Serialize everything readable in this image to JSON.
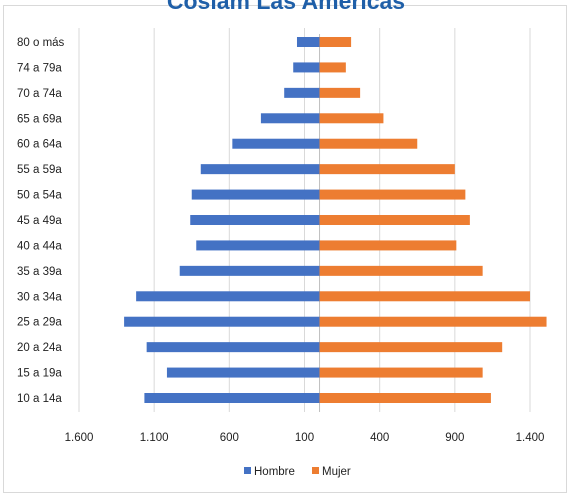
{
  "chart_data": {
    "type": "bar",
    "title": "Coslam Las Américas",
    "categories": [
      "10 a 14a",
      "15 a 19a",
      "20 a 24a",
      "25 a 29a",
      "30 a 34a",
      "35 a 39a",
      "40 a 44a",
      "45 a 49a",
      "50 a 54a",
      "55 a 59a",
      "60 a 64a",
      "65 a 69a",
      "70 a 74a",
      "74 a 79a",
      "80 o más"
    ],
    "series": [
      {
        "name": "Hombre",
        "color": "#4472c4",
        "values": [
          1165,
          1015,
          1150,
          1300,
          1220,
          930,
          820,
          860,
          850,
          790,
          580,
          390,
          235,
          175,
          150
        ]
      },
      {
        "name": "Mujer",
        "color": "#ed7d31",
        "values": [
          1140,
          1085,
          1215,
          1510,
          1400,
          1085,
          910,
          1000,
          970,
          900,
          650,
          425,
          270,
          175,
          210
        ]
      }
    ],
    "xtick_labels": [
      "1.600",
      "1.100",
      "600",
      "100",
      "400",
      "900",
      "1.400"
    ],
    "xtick_values": [
      -1600,
      -1100,
      -600,
      -100,
      400,
      900,
      1400
    ],
    "xlim": [
      -1600,
      1400
    ],
    "grid": true,
    "legend_position": "bottom"
  }
}
